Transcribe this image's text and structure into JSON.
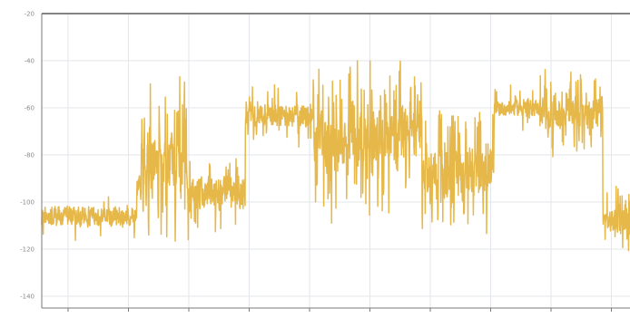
{
  "chart_data": {
    "type": "line",
    "title": "",
    "xlabel": "",
    "ylabel": "",
    "ylim": [
      -145,
      -20
    ],
    "yticks": [
      -20,
      -40,
      -60,
      -80,
      -100,
      -120,
      -140
    ],
    "xlim": [
      0,
      650
    ],
    "grid": true,
    "legend": "none",
    "colors": {
      "series": "#e6b84a",
      "grid": "#e3e6ea",
      "frame": "#3a3a3a",
      "tick_text": "#8a8a8a"
    },
    "segments": [
      {
        "x0": 0,
        "x1": 105,
        "base": -106,
        "noise": 5,
        "spikes": 0.05
      },
      {
        "x0": 105,
        "x1": 110,
        "base": -92,
        "noise": 4,
        "spikes": 0.1
      },
      {
        "x0": 110,
        "x1": 160,
        "base": -82,
        "noise": 14,
        "spikes": 0.3
      },
      {
        "x0": 160,
        "x1": 225,
        "base": -96,
        "noise": 8,
        "spikes": 0.15
      },
      {
        "x0": 225,
        "x1": 300,
        "base": -63,
        "noise": 6,
        "spikes": 0.1
      },
      {
        "x0": 300,
        "x1": 420,
        "base": -72,
        "noise": 13,
        "spikes": 0.3
      },
      {
        "x0": 420,
        "x1": 500,
        "base": -86,
        "noise": 11,
        "spikes": 0.3
      },
      {
        "x0": 500,
        "x1": 550,
        "base": -60,
        "noise": 4,
        "spikes": 0.05
      },
      {
        "x0": 550,
        "x1": 620,
        "base": -62,
        "noise": 8,
        "spikes": 0.2
      },
      {
        "x0": 620,
        "x1": 650,
        "base": -108,
        "noise": 6,
        "spikes": 0.15
      }
    ],
    "series": [
      {
        "name": "",
        "samples_per_unit": 3.2
      }
    ]
  }
}
